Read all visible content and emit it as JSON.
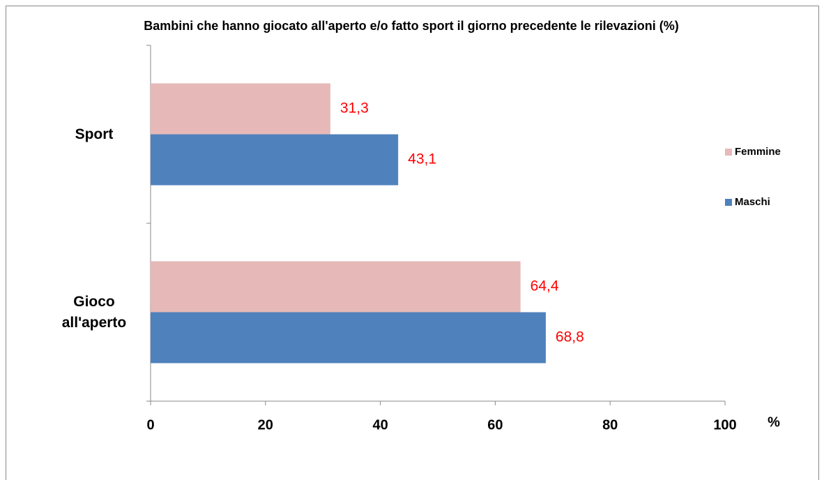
{
  "chart_data": {
    "type": "hbar",
    "title": "Bambini  che hanno giocato all'aperto e/o fatto sport il giorno precedente le rilevazioni (%)",
    "categories": [
      "Sport",
      "Gioco all'aperto"
    ],
    "series": [
      {
        "name": "Femmine",
        "color": "#e6b9b8",
        "values": [
          31.3,
          64.4
        ],
        "value_labels": [
          "31,3",
          "64,4"
        ]
      },
      {
        "name": "Maschi",
        "color": "#4f81bd",
        "values": [
          43.1,
          68.8
        ],
        "value_labels": [
          "43,1",
          "68,8"
        ]
      }
    ],
    "x_label": "%",
    "xlim": [
      0,
      100
    ],
    "xticks": [
      0,
      20,
      40,
      60,
      80,
      100
    ],
    "legend": "right",
    "value_label_color": "#ff0000"
  }
}
